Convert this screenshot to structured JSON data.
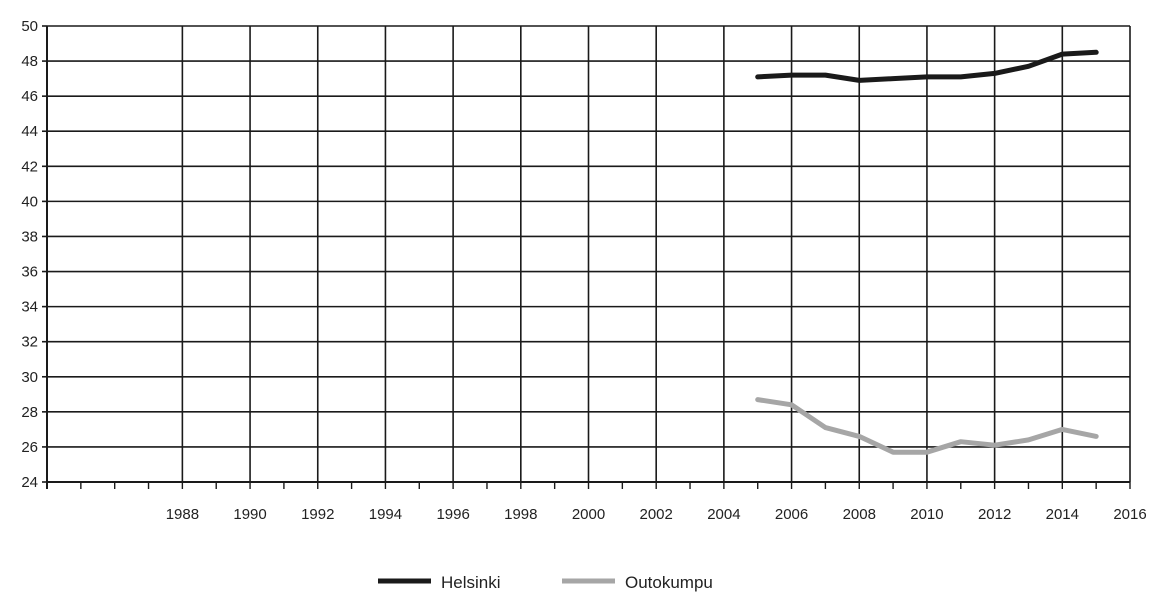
{
  "chart_data": {
    "type": "line",
    "title": "",
    "xlabel": "",
    "ylabel": "",
    "xlim": [
      1984,
      2016
    ],
    "ylim": [
      24,
      50
    ],
    "x_ticks": [
      1988,
      1990,
      1992,
      1994,
      1996,
      1998,
      2000,
      2002,
      2004,
      2006,
      2008,
      2010,
      2012,
      2014,
      2016
    ],
    "y_ticks": [
      24,
      26,
      28,
      30,
      32,
      34,
      36,
      38,
      40,
      42,
      44,
      46,
      48,
      50
    ],
    "grid": true,
    "legend_position": "bottom-center",
    "series": [
      {
        "name": "Helsinki",
        "color": "#1a1a1a",
        "x": [
          2005,
          2006,
          2007,
          2008,
          2009,
          2010,
          2011,
          2012,
          2013,
          2014,
          2015
        ],
        "y": [
          47.1,
          47.2,
          47.2,
          46.9,
          47.0,
          47.1,
          47.1,
          47.3,
          47.7,
          48.4,
          48.5
        ]
      },
      {
        "name": "Outokumpu",
        "color": "#a6a6a6",
        "x": [
          2005,
          2006,
          2007,
          2008,
          2009,
          2010,
          2011,
          2012,
          2013,
          2014,
          2015
        ],
        "y": [
          28.7,
          28.4,
          27.1,
          26.6,
          25.7,
          25.7,
          26.3,
          26.1,
          26.4,
          27.0,
          26.6
        ]
      }
    ]
  }
}
